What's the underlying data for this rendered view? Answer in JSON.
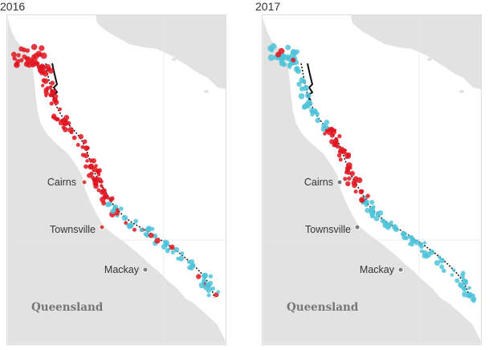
{
  "panels": [
    {
      "year": "2016",
      "cities": {
        "cairns": "Cairns",
        "townsville": "Townsville",
        "mackay": "Mackay"
      },
      "state_label": "Queensland",
      "dominant_color": "#e0141e"
    },
    {
      "year": "2017",
      "cities": {
        "cairns": "Cairns",
        "townsville": "Townsville",
        "mackay": "Mackay"
      },
      "state_label": "Queensland",
      "dominant_color": "#e0141e"
    }
  ],
  "colors": {
    "land": "#e2e2e2",
    "sea": "#ffffff",
    "reef": "#111111",
    "bleaching_severe": "#e0141e",
    "bleaching_low": "#4fc3d9",
    "city_dot": "#7a7a7a",
    "city_dot_2016_cairns": "#d0493a"
  }
}
